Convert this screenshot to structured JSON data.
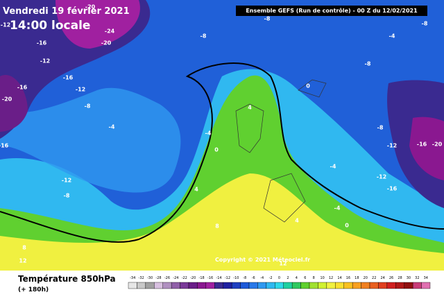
{
  "header": {
    "date": "Vendredi 19 février 2021",
    "time": "14:00 locale",
    "run": "Ensemble GEFS  (Run de contrôle) - 00 Z du 12/02/2021"
  },
  "map": {
    "labels": [
      "-20",
      "-12",
      "-16",
      "-24",
      "-20",
      "-12",
      "-16",
      "-12",
      "-8",
      "-20",
      "-16",
      "-4",
      "-4",
      "0",
      "-8",
      "-12",
      "-8",
      "-16",
      "4",
      "4",
      "8",
      "8",
      "12",
      "12",
      "-4",
      "-8",
      "-8",
      "-12",
      "-16",
      "-20",
      "-12",
      "-16",
      "-4",
      "0",
      "-8",
      "4",
      "0",
      "-4",
      "-8"
    ],
    "copyright": "Copyright © 2021 Méteociel.fr"
  },
  "footer": {
    "variable": "Température 850hPa",
    "lead": "(+ 180h)"
  },
  "legend": {
    "labels": [
      "-34",
      "-32",
      "-30",
      "-28",
      "-26",
      "-24",
      "-22",
      "-20",
      "-18",
      "-16",
      "-14",
      "-12",
      "-10",
      "-8",
      "-6",
      "-4",
      "-2",
      "0",
      "2",
      "4",
      "6",
      "8",
      "10",
      "12",
      "14",
      "16",
      "18",
      "20",
      "22",
      "24",
      "26",
      "28",
      "30",
      "32",
      "34"
    ],
    "colors": [
      "#e6e6e6",
      "#c8c8c8",
      "#a0a0a0",
      "#d8c0e0",
      "#b090c0",
      "#9060a8",
      "#7a3a98",
      "#6a1e88",
      "#8a1890",
      "#a020a0",
      "#3a2a90",
      "#2020a0",
      "#2040c0",
      "#1e5ad8",
      "#2878e8",
      "#2f98f0",
      "#30b8f0",
      "#30d8e8",
      "#20d0a0",
      "#30c860",
      "#60d030",
      "#a0e030",
      "#d0f030",
      "#f0f040",
      "#f8e030",
      "#f8c020",
      "#f8a020",
      "#f08020",
      "#e86020",
      "#e04020",
      "#d02020",
      "#b01818",
      "#901010",
      "#c83c78",
      "#e070b0"
    ]
  }
}
